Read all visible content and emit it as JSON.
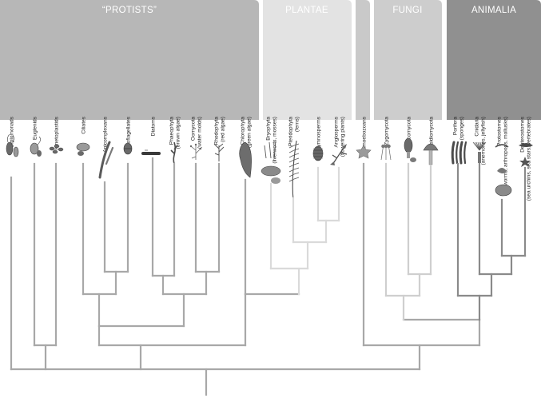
{
  "groups": [
    {
      "key": "protists",
      "label": "“PROTISTS”",
      "color": "#b7b7b7"
    },
    {
      "key": "plantae",
      "label": "PLANTAE",
      "color": "#e3e3e3"
    },
    {
      "key": "amoebozoans",
      "label": "",
      "color": "#c9c9c9"
    },
    {
      "key": "fungi",
      "label": "FUNGI",
      "color": "#cdcdcd"
    },
    {
      "key": "animalia",
      "label": "ANIMALIA",
      "color": "#909090"
    }
  ],
  "taxa": [
    {
      "key": "diplomonads",
      "lines": [
        "Diplomonads"
      ],
      "organism": "diplomonad-cell-icon"
    },
    {
      "key": "euglenids",
      "lines": [
        "Euglenids"
      ],
      "organism": "euglenid-cell-icon"
    },
    {
      "key": "kinetoplastids",
      "lines": [
        "Kinetoplastids"
      ],
      "organism": "kinetoplastid-cells-icon"
    },
    {
      "key": "ciliates",
      "lines": [
        "Ciliates"
      ],
      "organism": "ciliate-cell-icon"
    },
    {
      "key": "apicomplexans",
      "lines": [
        "Apicomplexans"
      ],
      "organism": "apicomplexan-cells-icon"
    },
    {
      "key": "dinoflagellates",
      "lines": [
        "Dinoflagellates"
      ],
      "organism": "dinoflagellate-cell-icon"
    },
    {
      "key": "diatoms",
      "lines": [
        "Diatoms"
      ],
      "organism": "diatom-cell-icon"
    },
    {
      "key": "phaeophyta",
      "lines": [
        "Phaeophyta",
        "(brown algae)"
      ],
      "organism": "brown-alga-icon"
    },
    {
      "key": "oomycota",
      "lines": [
        "Oomycota",
        "(water molds)"
      ],
      "organism": "water-mold-icon"
    },
    {
      "key": "rhodophyta",
      "lines": [
        "Rhodophyta",
        "(red algae)"
      ],
      "organism": "red-alga-icon"
    },
    {
      "key": "chlorophyta",
      "lines": [
        "Chlorophyta",
        "(green algae)"
      ],
      "organism": "green-alga-icon"
    },
    {
      "key": "bryophyta",
      "lines": [
        "Bryophyta",
        "(liverworts, mosses)"
      ],
      "organism": "moss-icon"
    },
    {
      "key": "pteridophyta",
      "lines": [
        "Pteridophyta",
        "(ferns)"
      ],
      "organism": "fern-icon"
    },
    {
      "key": "gymnosperms",
      "lines": [
        "Gymnosperms"
      ],
      "organism": "pine-cone-icon"
    },
    {
      "key": "angiosperms",
      "lines": [
        "Angiosperms",
        "(flowering plants)"
      ],
      "organism": "flowering-plant-icon"
    },
    {
      "key": "amoebozoans",
      "lines": [
        "Amoebozoans"
      ],
      "organism": "amoeba-icon"
    },
    {
      "key": "zygomycota",
      "lines": [
        "Zygomycota"
      ],
      "organism": "bread-mold-icon"
    },
    {
      "key": "ascomycota",
      "lines": [
        "Ascomycota"
      ],
      "organism": "morel-icon"
    },
    {
      "key": "basidiomycota",
      "lines": [
        "Basidiomycota"
      ],
      "organism": "mushroom-icon"
    },
    {
      "key": "porifera",
      "lines": [
        "Porifera",
        "(sponges)"
      ],
      "organism": "sponge-icon"
    },
    {
      "key": "cnidaria",
      "lines": [
        "Cnidaria",
        "(anemones, jellyfish)"
      ],
      "organism": "anemone-icon"
    },
    {
      "key": "protostomes",
      "lines": [
        "Protostomes",
        "(worms, arthropods, mollusks)"
      ],
      "organism": "worm-shrimp-shell-icon"
    },
    {
      "key": "deuterostomes",
      "lines": [
        "Deuterostomes",
        "(sea urchins, sea stars, vertebrates)"
      ],
      "organism": "fish-seastar-icon"
    }
  ]
}
